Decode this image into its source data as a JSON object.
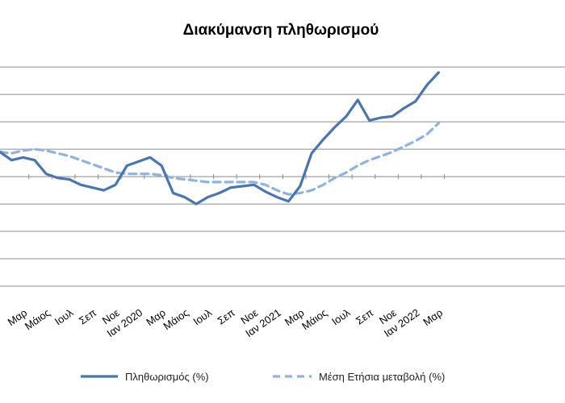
{
  "chart_data": {
    "type": "line",
    "title": "Διακύμανση  πληθωρισμού",
    "xlabel": "",
    "ylabel": "",
    "grid": true,
    "legend_position": "bottom",
    "x_tick_labels": [
      "Μαρ",
      "Μάιος",
      "Ιουλ",
      "Σεπ",
      "Νοε",
      "Ιαν 2020",
      "Μαρ",
      "Μάιος",
      "Ιουλ",
      "Σεπ",
      "Νοε",
      "Ιαν 2021",
      "Μαρ",
      "Μάιος",
      "Ιουλ",
      "Σεπ",
      "Νοε",
      "Ιαν 2022",
      "Μαρ"
    ],
    "x_tick_index": [
      2,
      4,
      6,
      8,
      10,
      12,
      14,
      16,
      18,
      20,
      22,
      24,
      26,
      28,
      30,
      32,
      34,
      36,
      38
    ],
    "ylim": [
      -4.5,
      4.8
    ],
    "y_gridlines": [
      -4,
      -3,
      -2,
      -1,
      0,
      1,
      2,
      3,
      4
    ],
    "series": [
      {
        "name": "Πληθωρισμός (%)",
        "color": "#4a76b0",
        "style": "solid",
        "values": [
          0.9,
          0.6,
          0.7,
          0.6,
          0.1,
          -0.05,
          -0.1,
          -0.3,
          -0.4,
          -0.5,
          -0.3,
          0.4,
          0.55,
          0.7,
          0.4,
          -0.6,
          -0.75,
          -1.0,
          -0.75,
          -0.6,
          -0.4,
          -0.35,
          -0.3,
          -0.55,
          -0.75,
          -0.9,
          -0.35,
          0.85,
          1.35,
          1.8,
          2.2,
          2.8,
          2.05,
          2.15,
          2.2,
          2.5,
          2.75,
          3.35,
          3.8
        ]
      },
      {
        "name": "Μέση Ετήσια μεταβολή (%)",
        "color": "#8fb3e0",
        "style": "dashed",
        "values": [
          0.9,
          0.85,
          0.95,
          1.0,
          0.95,
          0.85,
          0.75,
          0.6,
          0.45,
          0.3,
          0.15,
          0.1,
          0.1,
          0.1,
          0.05,
          -0.05,
          -0.1,
          -0.15,
          -0.2,
          -0.2,
          -0.2,
          -0.2,
          -0.2,
          -0.3,
          -0.5,
          -0.65,
          -0.6,
          -0.5,
          -0.3,
          -0.05,
          0.15,
          0.4,
          0.6,
          0.75,
          0.9,
          1.1,
          1.3,
          1.55,
          1.95
        ]
      }
    ]
  }
}
